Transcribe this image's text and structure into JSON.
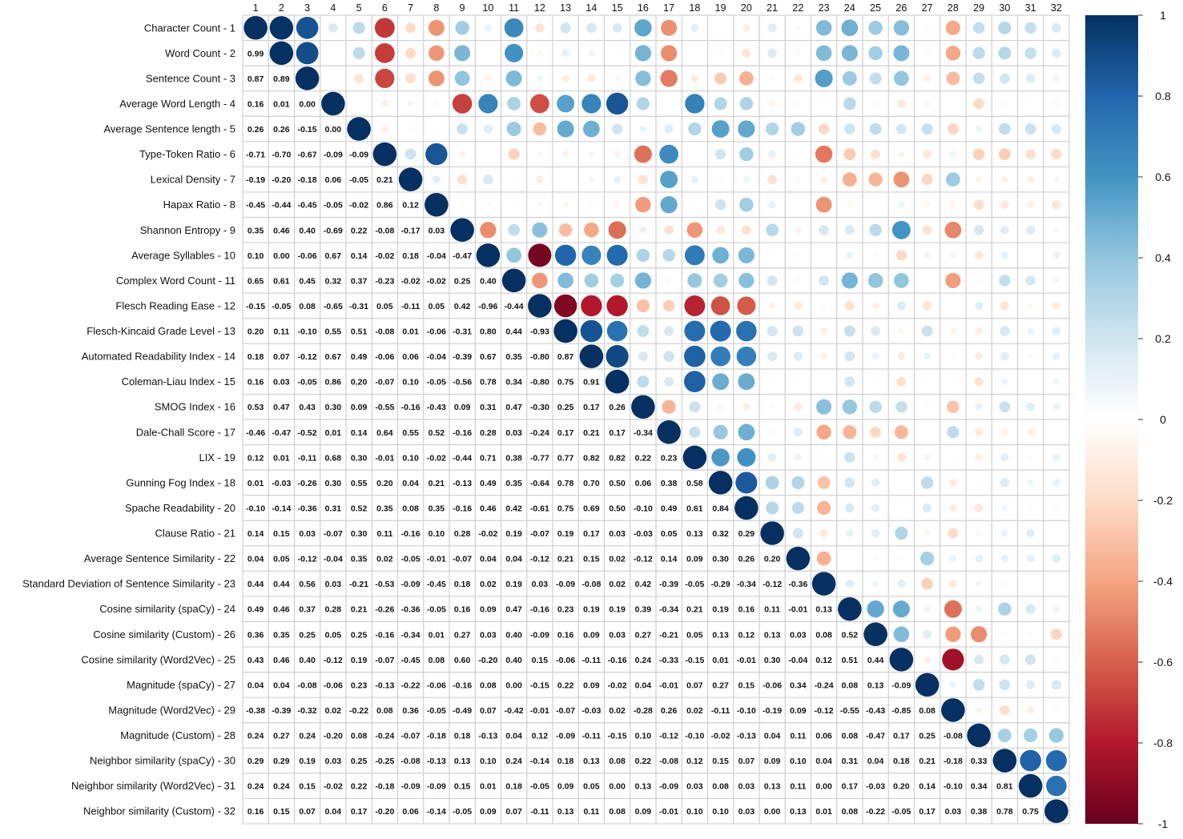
{
  "chart_data": {
    "type": "heatmap",
    "title": "",
    "style": "corrplot mixed: lower triangle numbers, upper triangle circles",
    "column_labels": [
      "1",
      "2",
      "3",
      "4",
      "5",
      "6",
      "7",
      "8",
      "9",
      "10",
      "11",
      "12",
      "13",
      "14",
      "15",
      "16",
      "17",
      "18",
      "19",
      "20",
      "21",
      "22",
      "23",
      "24",
      "25",
      "26",
      "27",
      "28",
      "29",
      "30",
      "31",
      "32"
    ],
    "row_labels": [
      "Character Count - 1",
      "Word Count - 2",
      "Sentence Count - 3",
      "Average Word Length - 4",
      "Average Sentence length - 5",
      "Type-Token Ratio - 6",
      "Lexical Density - 7",
      "Hapax Ratio - 8",
      "Shannon Entropy - 9",
      "Average Syllables - 10",
      "Complex Word Count - 11",
      "Flesch Reading Ease - 12",
      "Flesch-Kincaid Grade Level - 13",
      "Automated Readability Index - 14",
      "Coleman-Liau Index - 15",
      "SMOG Index - 16",
      "Dale-Chall Score - 17",
      "LIX - 19",
      "Gunning Fog Index - 18",
      "Spache Readability - 20",
      "Clause Ratio - 21",
      "Average Sentence Similarity - 22",
      "Standard Deviation of Sentence Similarity - 23",
      "Cosine similarity (spaCy) - 24",
      "Cosine similarity (Custom) - 26",
      "Cosine similarity (Word2Vec) - 25",
      "Magnitude (spaCy) - 27",
      "Magnitude (Word2Vec) - 29",
      "Magnitude (Custom) - 28",
      "Neighbor similarity (spaCy) - 30",
      "Neighbor similarity (Word2Vec) - 31",
      "Neighbor similarity (Custom) - 32"
    ],
    "lower_triangle": [
      [],
      [
        0.99
      ],
      [
        0.87,
        0.89
      ],
      [
        0.16,
        0.01,
        0.0
      ],
      [
        0.26,
        0.26,
        -0.15,
        0.0
      ],
      [
        -0.71,
        -0.7,
        -0.67,
        -0.09,
        -0.09
      ],
      [
        -0.19,
        -0.2,
        -0.18,
        0.06,
        -0.05,
        0.21
      ],
      [
        -0.45,
        -0.44,
        -0.45,
        -0.05,
        -0.02,
        0.86,
        0.12
      ],
      [
        0.35,
        0.46,
        0.4,
        -0.69,
        0.22,
        -0.08,
        -0.17,
        0.03
      ],
      [
        0.1,
        0.0,
        -0.06,
        0.67,
        0.14,
        -0.02,
        0.18,
        -0.04,
        -0.47
      ],
      [
        0.65,
        0.61,
        0.45,
        0.32,
        0.37,
        -0.23,
        -0.02,
        -0.02,
        0.25,
        0.4
      ],
      [
        -0.15,
        -0.05,
        0.08,
        -0.65,
        -0.31,
        0.05,
        -0.11,
        0.05,
        0.42,
        -0.96,
        -0.44
      ],
      [
        0.2,
        0.11,
        -0.1,
        0.55,
        0.51,
        -0.08,
        0.01,
        -0.06,
        -0.31,
        0.8,
        0.44,
        -0.93
      ],
      [
        0.18,
        0.07,
        -0.12,
        0.67,
        0.49,
        -0.06,
        0.06,
        -0.04,
        -0.39,
        0.67,
        0.35,
        -0.8,
        0.87
      ],
      [
        0.16,
        0.03,
        -0.05,
        0.86,
        0.2,
        -0.07,
        0.1,
        -0.05,
        -0.56,
        0.78,
        0.34,
        -0.8,
        0.75,
        0.91
      ],
      [
        0.53,
        0.47,
        0.43,
        0.3,
        0.09,
        -0.55,
        -0.16,
        -0.43,
        0.09,
        0.31,
        0.47,
        -0.3,
        0.25,
        0.17,
        0.26
      ],
      [
        -0.46,
        -0.47,
        -0.52,
        0.01,
        0.14,
        0.64,
        0.55,
        0.52,
        -0.16,
        0.28,
        0.03,
        -0.24,
        0.17,
        0.21,
        0.17,
        -0.34
      ],
      [
        0.12,
        0.01,
        -0.11,
        0.68,
        0.3,
        -0.01,
        0.1,
        -0.02,
        -0.44,
        0.71,
        0.38,
        -0.77,
        0.77,
        0.82,
        0.82,
        0.22,
        0.23
      ],
      [
        0.01,
        -0.03,
        -0.26,
        0.3,
        0.55,
        0.2,
        0.04,
        0.21,
        -0.13,
        0.49,
        0.35,
        -0.64,
        0.78,
        0.7,
        0.5,
        0.06,
        0.38,
        0.58
      ],
      [
        -0.1,
        -0.14,
        -0.36,
        0.31,
        0.52,
        0.35,
        0.08,
        0.35,
        -0.16,
        0.46,
        0.42,
        -0.61,
        0.75,
        0.69,
        0.5,
        -0.1,
        0.49,
        0.61,
        0.84
      ],
      [
        0.14,
        0.15,
        0.03,
        -0.07,
        0.3,
        0.11,
        -0.16,
        0.1,
        0.28,
        -0.02,
        0.19,
        -0.07,
        0.19,
        0.17,
        0.03,
        -0.03,
        0.05,
        0.13,
        0.32,
        0.29
      ],
      [
        0.04,
        0.05,
        -0.12,
        -0.04,
        0.35,
        0.02,
        -0.05,
        -0.01,
        -0.07,
        0.04,
        0.04,
        -0.12,
        0.21,
        0.15,
        0.02,
        -0.12,
        0.14,
        0.09,
        0.3,
        0.26,
        0.2
      ],
      [
        0.44,
        0.44,
        0.56,
        0.03,
        -0.21,
        -0.53,
        -0.09,
        -0.45,
        0.18,
        0.02,
        0.19,
        0.03,
        -0.09,
        -0.08,
        0.02,
        0.42,
        -0.39,
        -0.05,
        -0.29,
        -0.34,
        -0.12,
        -0.36
      ],
      [
        0.49,
        0.46,
        0.37,
        0.28,
        0.21,
        -0.26,
        -0.36,
        -0.05,
        0.16,
        0.09,
        0.47,
        -0.16,
        0.23,
        0.19,
        0.19,
        0.39,
        -0.34,
        0.21,
        0.19,
        0.16,
        0.11,
        -0.01,
        0.13
      ],
      [
        0.36,
        0.35,
        0.25,
        0.05,
        0.25,
        -0.16,
        -0.34,
        0.01,
        0.27,
        0.03,
        0.4,
        -0.09,
        0.16,
        0.09,
        0.03,
        0.27,
        -0.21,
        0.05,
        0.13,
        0.12,
        0.13,
        0.03,
        0.08,
        0.52
      ],
      [
        0.43,
        0.46,
        0.4,
        -0.12,
        0.19,
        -0.07,
        -0.45,
        0.08,
        0.6,
        -0.2,
        0.4,
        0.15,
        -0.06,
        -0.11,
        -0.16,
        0.24,
        -0.33,
        -0.15,
        0.01,
        -0.01,
        0.3,
        -0.04,
        0.12,
        0.51,
        0.44
      ],
      [
        0.04,
        0.04,
        -0.08,
        -0.06,
        0.23,
        -0.13,
        -0.22,
        -0.06,
        -0.16,
        0.08,
        0.0,
        -0.15,
        0.22,
        0.09,
        -0.02,
        0.04,
        -0.01,
        0.07,
        0.27,
        0.15,
        -0.06,
        0.34,
        -0.24,
        0.08,
        0.13,
        -0.09
      ],
      [
        -0.38,
        -0.39,
        -0.32,
        0.02,
        -0.22,
        0.08,
        0.36,
        -0.05,
        -0.49,
        0.07,
        -0.42,
        -0.01,
        -0.07,
        -0.03,
        0.02,
        -0.28,
        0.26,
        0.02,
        -0.11,
        -0.1,
        -0.19,
        0.09,
        -0.12,
        -0.55,
        -0.43,
        -0.85,
        0.08
      ],
      [
        0.24,
        0.27,
        0.24,
        -0.2,
        0.08,
        -0.24,
        -0.07,
        -0.18,
        0.18,
        -0.13,
        0.04,
        0.12,
        -0.09,
        -0.11,
        -0.15,
        0.1,
        -0.12,
        -0.1,
        -0.02,
        -0.13,
        0.04,
        0.11,
        0.06,
        0.08,
        -0.47,
        0.17,
        0.25,
        -0.08
      ],
      [
        0.29,
        0.29,
        0.19,
        0.03,
        0.25,
        -0.25,
        -0.08,
        -0.13,
        0.13,
        0.1,
        0.24,
        -0.14,
        0.18,
        0.13,
        0.08,
        0.22,
        -0.08,
        0.12,
        0.15,
        0.07,
        0.09,
        0.1,
        0.04,
        0.31,
        0.04,
        0.18,
        0.21,
        -0.18,
        0.33
      ],
      [
        0.24,
        0.24,
        0.15,
        -0.02,
        0.22,
        -0.18,
        -0.09,
        -0.09,
        0.15,
        0.01,
        0.18,
        -0.05,
        0.09,
        0.05,
        0.0,
        0.13,
        -0.09,
        0.03,
        0.08,
        0.03,
        0.13,
        0.11,
        0.0,
        0.17,
        -0.03,
        0.2,
        0.14,
        -0.1,
        0.34,
        0.81
      ],
      [
        0.16,
        0.15,
        0.07,
        0.04,
        0.17,
        -0.2,
        0.06,
        -0.14,
        -0.05,
        0.09,
        0.07,
        -0.11,
        0.13,
        0.11,
        0.08,
        0.09,
        -0.01,
        0.1,
        0.1,
        0.03,
        0.0,
        0.13,
        0.01,
        0.08,
        -0.22,
        -0.05,
        0.17,
        0.03,
        0.38,
        0.78,
        0.75
      ]
    ],
    "diagonal": 1,
    "color_scale": {
      "range": [
        -1,
        1
      ],
      "ticks": [
        "1",
        "0.8",
        "0.6",
        "0.4",
        "0.2",
        "0",
        "-0.2",
        "-0.4",
        "-0.6",
        "-0.8",
        "-1"
      ],
      "tick_values": [
        1,
        0.8,
        0.6,
        0.4,
        0.2,
        0,
        -0.2,
        -0.4,
        -0.6,
        -0.8,
        -1
      ],
      "colors": [
        "#67001F",
        "#B2182B",
        "#D6604D",
        "#F4A582",
        "#FDDBC7",
        "#FFFFFF",
        "#D1E5F0",
        "#92C5DE",
        "#4393C3",
        "#2166AC",
        "#053061"
      ]
    },
    "legend_placement": "right"
  }
}
